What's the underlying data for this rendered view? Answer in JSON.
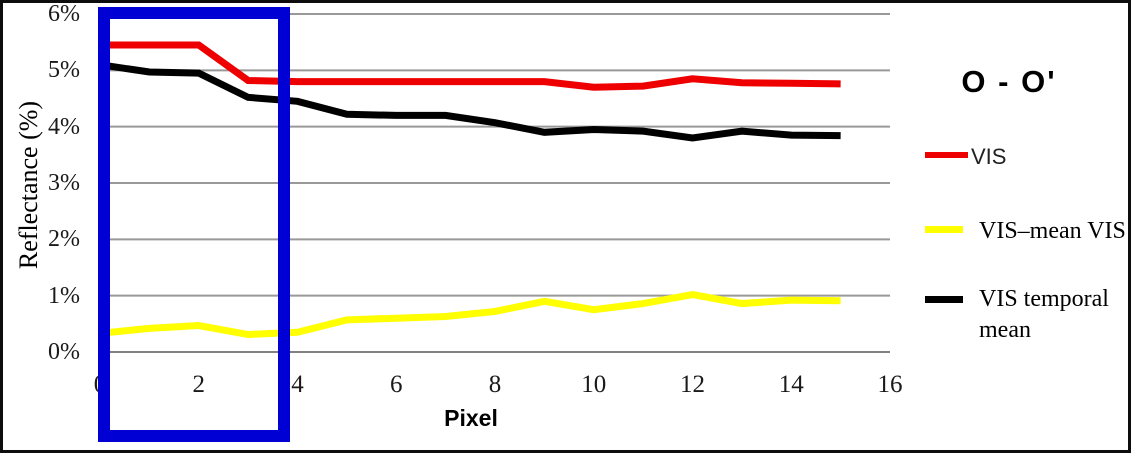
{
  "chart_data": {
    "type": "line",
    "title": "O - O'",
    "xlabel": "Pixel",
    "ylabel": "Reflectance (%)",
    "xlim": [
      0,
      16
    ],
    "ylim": [
      0,
      6
    ],
    "grid": true,
    "legend_position": "right",
    "x_ticks": [
      {
        "v": 0,
        "label": "0"
      },
      {
        "v": 2,
        "label": "2"
      },
      {
        "v": 4,
        "label": "4"
      },
      {
        "v": 6,
        "label": "6"
      },
      {
        "v": 8,
        "label": "8"
      },
      {
        "v": 10,
        "label": "10"
      },
      {
        "v": 12,
        "label": "12"
      },
      {
        "v": 14,
        "label": "14"
      },
      {
        "v": 16,
        "label": "16"
      }
    ],
    "y_ticks": [
      {
        "v": 0,
        "label": "0%"
      },
      {
        "v": 1,
        "label": "1%"
      },
      {
        "v": 2,
        "label": "2%"
      },
      {
        "v": 3,
        "label": "3%"
      },
      {
        "v": 4,
        "label": "4%"
      },
      {
        "v": 5,
        "label": "5%"
      },
      {
        "v": 6,
        "label": "6%"
      }
    ],
    "x": [
      0,
      1,
      2,
      3,
      4,
      5,
      6,
      7,
      8,
      9,
      10,
      11,
      12,
      13,
      14,
      15
    ],
    "series": [
      {
        "name": "VIS",
        "color": "#ee0000",
        "values": [
          5.45,
          5.45,
          5.45,
          4.82,
          4.8,
          4.8,
          4.8,
          4.8,
          4.8,
          4.8,
          4.7,
          4.72,
          4.85,
          4.78,
          4.77,
          4.76
        ]
      },
      {
        "name": "VIS–mean VIS",
        "color": "#ffff00",
        "values": [
          0.33,
          0.42,
          0.47,
          0.31,
          0.35,
          0.57,
          0.6,
          0.63,
          0.72,
          0.9,
          0.75,
          0.86,
          1.02,
          0.86,
          0.92,
          0.91
        ]
      },
      {
        "name": "VIS temporal mean",
        "color": "#000000",
        "values": [
          5.1,
          4.97,
          4.95,
          4.52,
          4.45,
          4.22,
          4.2,
          4.2,
          4.07,
          3.9,
          3.95,
          3.92,
          3.8,
          3.92,
          3.85,
          3.84
        ]
      }
    ],
    "annotations": {
      "highlight_box": {
        "x_range": [
          0,
          3.8
        ],
        "color": "#0000d4"
      }
    },
    "colors": {
      "gridline": "#999999",
      "axis_line": "#808080",
      "background": "#ffffff",
      "frame_border": "#0d0d0d"
    }
  }
}
